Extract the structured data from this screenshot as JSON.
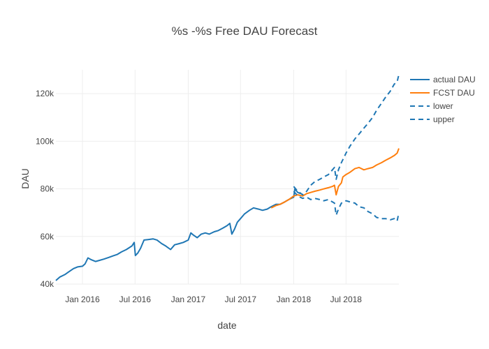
{
  "chart_data": {
    "type": "line",
    "title": "%s -%s Free DAU Forecast",
    "xlabel": "date",
    "ylabel": "DAU",
    "x_range": [
      "2015-10-01",
      "2018-12-31"
    ],
    "ylim": [
      40000,
      130000
    ],
    "x_ticks": [
      {
        "date": "2016-01-01",
        "label": "Jan 2016"
      },
      {
        "date": "2016-07-01",
        "label": "Jul 2016"
      },
      {
        "date": "2017-01-01",
        "label": "Jan 2017"
      },
      {
        "date": "2017-07-01",
        "label": "Jul 2017"
      },
      {
        "date": "2018-01-01",
        "label": "Jan 2018"
      },
      {
        "date": "2018-07-01",
        "label": "Jul 2018"
      }
    ],
    "y_ticks": [
      {
        "value": 40000,
        "label": "40k"
      },
      {
        "value": 60000,
        "label": "60k"
      },
      {
        "value": 80000,
        "label": "80k"
      },
      {
        "value": 100000,
        "label": "100k"
      },
      {
        "value": 120000,
        "label": "120k"
      }
    ],
    "grid": true,
    "legend_position": "top-right",
    "series": [
      {
        "name": "actual DAU",
        "color": "#1f77b4",
        "dash": "solid",
        "points": [
          [
            "2015-10-01",
            41500
          ],
          [
            "2015-10-15",
            43000
          ],
          [
            "2015-11-01",
            44000
          ],
          [
            "2015-11-15",
            45200
          ],
          [
            "2015-12-01",
            46500
          ],
          [
            "2015-12-15",
            47200
          ],
          [
            "2016-01-01",
            47500
          ],
          [
            "2016-01-10",
            48500
          ],
          [
            "2016-01-20",
            51000
          ],
          [
            "2016-02-01",
            50200
          ],
          [
            "2016-02-15",
            49500
          ],
          [
            "2016-03-01",
            50000
          ],
          [
            "2016-03-15",
            50500
          ],
          [
            "2016-04-01",
            51200
          ],
          [
            "2016-04-15",
            51800
          ],
          [
            "2016-05-01",
            52500
          ],
          [
            "2016-05-15",
            53500
          ],
          [
            "2016-06-01",
            54500
          ],
          [
            "2016-06-20",
            56000
          ],
          [
            "2016-06-28",
            57500
          ],
          [
            "2016-07-02",
            52000
          ],
          [
            "2016-07-10",
            53000
          ],
          [
            "2016-07-20",
            55000
          ],
          [
            "2016-08-01",
            58500
          ],
          [
            "2016-08-15",
            58700
          ],
          [
            "2016-09-01",
            59000
          ],
          [
            "2016-09-15",
            58500
          ],
          [
            "2016-10-01",
            57000
          ],
          [
            "2016-10-15",
            56000
          ],
          [
            "2016-11-01",
            54500
          ],
          [
            "2016-11-15",
            56500
          ],
          [
            "2016-12-01",
            57000
          ],
          [
            "2016-12-15",
            57500
          ],
          [
            "2017-01-01",
            58500
          ],
          [
            "2017-01-10",
            61500
          ],
          [
            "2017-01-20",
            60500
          ],
          [
            "2017-02-01",
            59500
          ],
          [
            "2017-02-15",
            61000
          ],
          [
            "2017-03-01",
            61500
          ],
          [
            "2017-03-15",
            61000
          ],
          [
            "2017-04-01",
            62000
          ],
          [
            "2017-04-15",
            62500
          ],
          [
            "2017-05-01",
            63500
          ],
          [
            "2017-05-15",
            64500
          ],
          [
            "2017-05-25",
            65500
          ],
          [
            "2017-06-01",
            61000
          ],
          [
            "2017-06-10",
            63000
          ],
          [
            "2017-06-20",
            66000
          ],
          [
            "2017-07-01",
            67500
          ],
          [
            "2017-07-15",
            69500
          ],
          [
            "2017-08-01",
            71000
          ],
          [
            "2017-08-15",
            72000
          ],
          [
            "2017-09-01",
            71500
          ],
          [
            "2017-09-15",
            71000
          ],
          [
            "2017-10-01",
            71500
          ],
          [
            "2017-10-15",
            72500
          ],
          [
            "2017-11-01",
            73500
          ],
          [
            "2017-11-15",
            73500
          ],
          [
            "2017-12-01",
            74500
          ],
          [
            "2017-12-15",
            75500
          ],
          [
            "2018-01-01",
            76500
          ],
          [
            "2018-01-05",
            80000
          ],
          [
            "2018-01-15",
            78500
          ],
          [
            "2018-01-25",
            78000
          ]
        ]
      },
      {
        "name": "FCST DAU",
        "color": "#ff7f0e",
        "dash": "solid",
        "points": [
          [
            "2017-10-15",
            72000
          ],
          [
            "2017-11-01",
            73000
          ],
          [
            "2017-11-15",
            73500
          ],
          [
            "2017-12-01",
            74500
          ],
          [
            "2017-12-15",
            75500
          ],
          [
            "2018-01-01",
            77000
          ],
          [
            "2018-01-15",
            77500
          ],
          [
            "2018-02-01",
            77000
          ],
          [
            "2018-02-15",
            78000
          ],
          [
            "2018-03-01",
            78500
          ],
          [
            "2018-03-15",
            79000
          ],
          [
            "2018-04-01",
            79500
          ],
          [
            "2018-04-15",
            80000
          ],
          [
            "2018-05-01",
            80500
          ],
          [
            "2018-05-15",
            81000
          ],
          [
            "2018-05-22",
            81500
          ],
          [
            "2018-05-28",
            77500
          ],
          [
            "2018-06-05",
            81000
          ],
          [
            "2018-06-15",
            82500
          ],
          [
            "2018-06-20",
            85000
          ],
          [
            "2018-07-01",
            86000
          ],
          [
            "2018-07-15",
            87000
          ],
          [
            "2018-08-01",
            88500
          ],
          [
            "2018-08-15",
            89000
          ],
          [
            "2018-09-01",
            88000
          ],
          [
            "2018-09-15",
            88500
          ],
          [
            "2018-10-01",
            89000
          ],
          [
            "2018-10-15",
            90000
          ],
          [
            "2018-11-01",
            91000
          ],
          [
            "2018-11-15",
            92000
          ],
          [
            "2018-12-01",
            93000
          ],
          [
            "2018-12-15",
            94000
          ],
          [
            "2018-12-25",
            95000
          ],
          [
            "2018-12-31",
            97000
          ]
        ]
      },
      {
        "name": "lower",
        "color": "#1f77b4",
        "dash": "dash",
        "points": [
          [
            "2018-01-01",
            79000
          ],
          [
            "2018-01-15",
            77000
          ],
          [
            "2018-02-01",
            76000
          ],
          [
            "2018-02-15",
            76500
          ],
          [
            "2018-03-01",
            75500
          ],
          [
            "2018-03-15",
            76000
          ],
          [
            "2018-04-01",
            75500
          ],
          [
            "2018-04-15",
            75000
          ],
          [
            "2018-05-01",
            75500
          ],
          [
            "2018-05-15",
            74500
          ],
          [
            "2018-05-22",
            74000
          ],
          [
            "2018-05-28",
            69000
          ],
          [
            "2018-06-05",
            71500
          ],
          [
            "2018-06-15",
            74000
          ],
          [
            "2018-07-01",
            75000
          ],
          [
            "2018-07-15",
            74500
          ],
          [
            "2018-08-01",
            74000
          ],
          [
            "2018-08-15",
            72500
          ],
          [
            "2018-09-01",
            72000
          ],
          [
            "2018-09-15",
            70500
          ],
          [
            "2018-10-01",
            69500
          ],
          [
            "2018-10-15",
            68000
          ],
          [
            "2018-11-01",
            67500
          ],
          [
            "2018-11-15",
            67500
          ],
          [
            "2018-12-01",
            67000
          ],
          [
            "2018-12-15",
            67500
          ],
          [
            "2018-12-25",
            66500
          ],
          [
            "2018-12-31",
            70000
          ]
        ]
      },
      {
        "name": "upper",
        "color": "#1f77b4",
        "dash": "dash",
        "points": [
          [
            "2018-01-01",
            81000
          ],
          [
            "2018-01-15",
            79000
          ],
          [
            "2018-02-01",
            77500
          ],
          [
            "2018-02-15",
            79000
          ],
          [
            "2018-03-01",
            81500
          ],
          [
            "2018-03-15",
            83000
          ],
          [
            "2018-04-01",
            84000
          ],
          [
            "2018-04-15",
            85000
          ],
          [
            "2018-05-01",
            86000
          ],
          [
            "2018-05-15",
            88000
          ],
          [
            "2018-05-22",
            89000
          ],
          [
            "2018-05-28",
            84000
          ],
          [
            "2018-06-05",
            88000
          ],
          [
            "2018-06-15",
            91000
          ],
          [
            "2018-07-01",
            95000
          ],
          [
            "2018-07-15",
            98000
          ],
          [
            "2018-08-01",
            101000
          ],
          [
            "2018-08-15",
            103000
          ],
          [
            "2018-09-01",
            105500
          ],
          [
            "2018-09-15",
            107500
          ],
          [
            "2018-10-01",
            110000
          ],
          [
            "2018-10-15",
            113000
          ],
          [
            "2018-11-01",
            116000
          ],
          [
            "2018-11-15",
            118500
          ],
          [
            "2018-12-01",
            121000
          ],
          [
            "2018-12-15",
            124000
          ],
          [
            "2018-12-25",
            125000
          ],
          [
            "2018-12-31",
            128000
          ]
        ]
      }
    ]
  }
}
